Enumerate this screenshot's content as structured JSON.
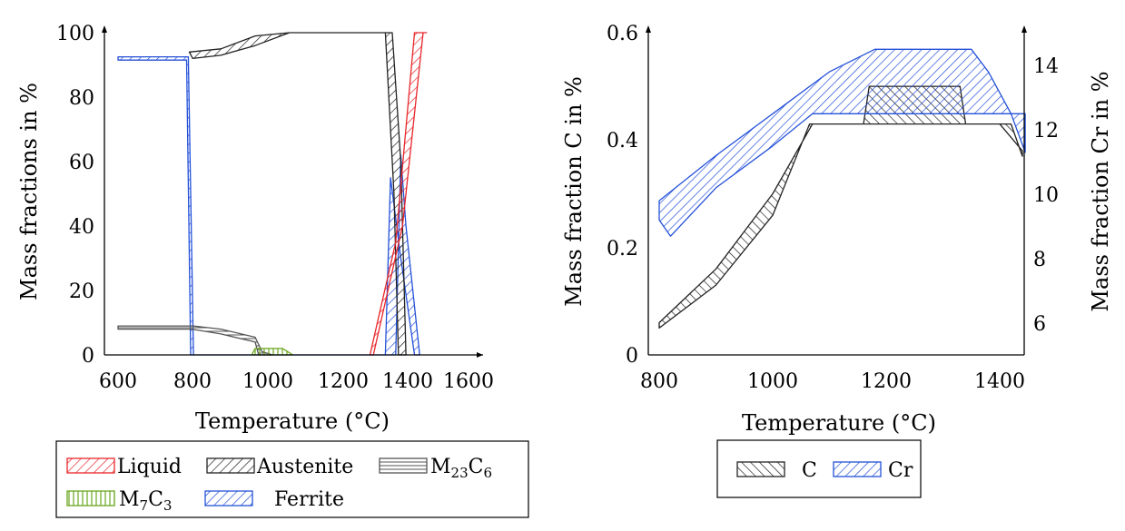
{
  "chart_data": [
    {
      "type": "area",
      "xlabel": "Temperature (°C)",
      "ylabel": "Mass fractions in %",
      "xlim": [
        600,
        1600
      ],
      "ylim": [
        0,
        100
      ],
      "xticks": [
        "600",
        "800",
        "1000",
        "1200",
        "1400",
        "1600"
      ],
      "yticks": [
        "0",
        "20",
        "40",
        "60",
        "80",
        "100"
      ],
      "legend_position": "bottom",
      "colors": {
        "Liquid": "#e8262b",
        "Austenite": "#222222",
        "M23C6": "#555555",
        "M7C3": "#6aa61e",
        "Ferrite": "#2450d8"
      },
      "legend": {
        "liquid": "Liquid",
        "austenite": "Austenite",
        "m23c6": {
          "base": "M",
          "sub": "23",
          "mid": "C",
          "sub2": "6"
        },
        "m7c3": {
          "base": "M",
          "sub": "7",
          "mid": "C",
          "sub2": "3"
        },
        "ferrite": "Ferrite"
      },
      "series": [
        {
          "name": "Ferrite",
          "upper": [
            [
              600,
              92.5
            ],
            [
              805,
              92.5
            ],
            [
              820,
              0
            ],
            [
              1410,
              0
            ],
            [
              1425,
              62
            ],
            [
              1440,
              40
            ],
            [
              1480,
              0
            ]
          ],
          "lower": [
            [
              600,
              91.5
            ],
            [
              800,
              91.5
            ],
            [
              812,
              0
            ],
            [
              1380,
              0
            ],
            [
              1395,
              55
            ],
            [
              1425,
              30
            ],
            [
              1465,
              0
            ]
          ]
        },
        {
          "name": "Austenite",
          "upper": [
            [
              808,
              94
            ],
            [
              900,
              95
            ],
            [
              1000,
              99
            ],
            [
              1100,
              100
            ],
            [
              1400,
              100
            ],
            [
              1425,
              60
            ],
            [
              1440,
              0
            ]
          ],
          "lower": [
            [
              818,
              92
            ],
            [
              900,
              93
            ],
            [
              1000,
              96
            ],
            [
              1100,
              100
            ],
            [
              1380,
              100
            ],
            [
              1405,
              50
            ],
            [
              1418,
              0
            ]
          ]
        },
        {
          "name": "Liquid",
          "upper": [
            [
              1345,
              0
            ],
            [
              1430,
              40
            ],
            [
              1490,
              100
            ],
            [
              1500,
              100
            ]
          ],
          "lower": [
            [
              1335,
              0
            ],
            [
              1410,
              35
            ],
            [
              1465,
              100
            ],
            [
              1480,
              100
            ]
          ]
        },
        {
          "name": "M23C6",
          "upper": [
            [
              600,
              9
            ],
            [
              820,
              9
            ],
            [
              900,
              8
            ],
            [
              1000,
              5.5
            ],
            [
              1020,
              1
            ],
            [
              1050,
              0
            ]
          ],
          "lower": [
            [
              600,
              8
            ],
            [
              815,
              8
            ],
            [
              900,
              6.5
            ],
            [
              1000,
              4
            ],
            [
              1010,
              0
            ]
          ]
        },
        {
          "name": "M7C3",
          "upper": [
            [
              990,
              0
            ],
            [
              1000,
              2
            ],
            [
              1080,
              2
            ],
            [
              1110,
              0
            ]
          ],
          "lower": [
            [
              990,
              0
            ],
            [
              1110,
              0
            ]
          ]
        }
      ]
    },
    {
      "type": "area",
      "xlabel": "Temperature (°C)",
      "ylabel": "Mass fraction C in %",
      "y2label": "Mass fraction Cr in %",
      "xlim": [
        780,
        1445
      ],
      "ylim": [
        0,
        0.6
      ],
      "y2lim": [
        5,
        15
      ],
      "xticks": [
        "800",
        "1000",
        "1200",
        "1400"
      ],
      "yticks": [
        "0",
        "0.2",
        "0.4",
        "0.6"
      ],
      "y2ticks": [
        "6",
        "8",
        "10",
        "12",
        "14"
      ],
      "legend_position": "bottom",
      "colors": {
        "C": "#222222",
        "Cr": "#2450d8"
      },
      "legend": {
        "c": "C",
        "cr": "Cr"
      },
      "series": [
        {
          "name": "C",
          "axis": "left",
          "upper": [
            [
              800,
              0.06
            ],
            [
              900,
              0.16
            ],
            [
              1000,
              0.3
            ],
            [
              1070,
              0.43
            ],
            [
              1160,
              0.43
            ],
            [
              1170,
              0.5
            ],
            [
              1330,
              0.5
            ],
            [
              1340,
              0.43
            ],
            [
              1400,
              0.43
            ],
            [
              1440,
              0.38
            ]
          ],
          "lower": [
            [
              800,
              0.05
            ],
            [
              900,
              0.13
            ],
            [
              1000,
              0.26
            ],
            [
              1065,
              0.43
            ],
            [
              1420,
              0.43
            ],
            [
              1440,
              0.37
            ]
          ]
        },
        {
          "name": "Cr",
          "axis": "right",
          "upper": [
            [
              800,
              9.8
            ],
            [
              900,
              11.2
            ],
            [
              1000,
              12.5
            ],
            [
              1100,
              13.8
            ],
            [
              1180,
              14.5
            ],
            [
              1350,
              14.5
            ],
            [
              1380,
              13.8
            ],
            [
              1420,
              12.5
            ],
            [
              1445,
              12.5
            ]
          ],
          "lower": [
            [
              800,
              9.2
            ],
            [
              820,
              8.7
            ],
            [
              900,
              10.2
            ],
            [
              1000,
              11.5
            ],
            [
              1070,
              12.5
            ],
            [
              1420,
              12.5
            ],
            [
              1445,
              11.3
            ]
          ]
        }
      ]
    }
  ]
}
